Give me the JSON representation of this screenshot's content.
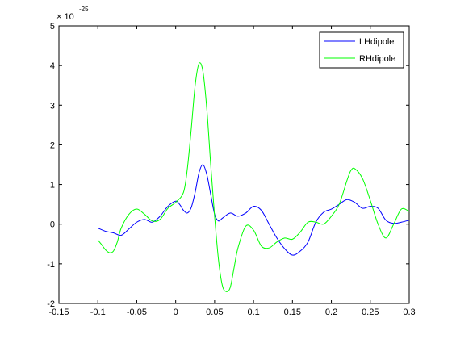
{
  "chart_data": {
    "type": "line",
    "xlim": [
      -0.15,
      0.3
    ],
    "ylim": [
      -2,
      5
    ],
    "xticks": [
      -0.15,
      -0.1,
      -0.05,
      0,
      0.05,
      0.1,
      0.15,
      0.2,
      0.25,
      0.3
    ],
    "xtick_labels": [
      "-0.15",
      "-0.1",
      "-0.05",
      "0",
      "0.05",
      "0.1",
      "0.15",
      "0.2",
      "0.25",
      "0.3"
    ],
    "yticks": [
      -2,
      -1,
      0,
      1,
      2,
      3,
      4,
      5
    ],
    "ytick_labels": [
      "-2",
      "-1",
      "0",
      "1",
      "2",
      "3",
      "4",
      "5"
    ],
    "y_exponent": {
      "base": "× 10",
      "power": "-25"
    },
    "grid": false,
    "legend_position": "top-right",
    "series": [
      {
        "name": "LHdipole",
        "color": "#0000ff",
        "x": [
          -0.1,
          -0.09,
          -0.08,
          -0.07,
          -0.06,
          -0.05,
          -0.04,
          -0.03,
          -0.02,
          -0.01,
          0,
          0.005,
          0.01,
          0.015,
          0.02,
          0.025,
          0.03,
          0.035,
          0.04,
          0.045,
          0.05,
          0.055,
          0.06,
          0.07,
          0.08,
          0.09,
          0.1,
          0.11,
          0.12,
          0.13,
          0.14,
          0.15,
          0.16,
          0.17,
          0.18,
          0.19,
          0.2,
          0.21,
          0.22,
          0.23,
          0.24,
          0.25,
          0.26,
          0.27,
          0.28,
          0.29,
          0.3
        ],
        "values": [
          -0.1,
          -0.18,
          -0.22,
          -0.28,
          -0.12,
          0.05,
          0.12,
          0.05,
          0.2,
          0.45,
          0.58,
          0.5,
          0.35,
          0.28,
          0.42,
          0.8,
          1.3,
          1.5,
          1.25,
          0.75,
          0.25,
          0.08,
          0.15,
          0.28,
          0.2,
          0.28,
          0.45,
          0.35,
          0.0,
          -0.35,
          -0.62,
          -0.78,
          -0.68,
          -0.45,
          0.05,
          0.3,
          0.38,
          0.5,
          0.62,
          0.55,
          0.4,
          0.45,
          0.4,
          0.1,
          0.02,
          0.05,
          0.1
        ]
      },
      {
        "name": "RHdipole",
        "color": "#00ff00",
        "x": [
          -0.1,
          -0.095,
          -0.09,
          -0.085,
          -0.08,
          -0.075,
          -0.07,
          -0.06,
          -0.05,
          -0.04,
          -0.03,
          -0.02,
          -0.01,
          0,
          0.01,
          0.015,
          0.02,
          0.025,
          0.03,
          0.035,
          0.04,
          0.045,
          0.05,
          0.055,
          0.06,
          0.065,
          0.07,
          0.075,
          0.08,
          0.09,
          0.1,
          0.11,
          0.12,
          0.13,
          0.14,
          0.15,
          0.16,
          0.17,
          0.18,
          0.19,
          0.2,
          0.21,
          0.22,
          0.225,
          0.23,
          0.24,
          0.25,
          0.26,
          0.27,
          0.28,
          0.29,
          0.3
        ],
        "values": [
          -0.4,
          -0.52,
          -0.65,
          -0.72,
          -0.68,
          -0.45,
          -0.1,
          0.25,
          0.38,
          0.25,
          0.08,
          0.12,
          0.4,
          0.55,
          0.8,
          1.4,
          2.4,
          3.5,
          4.05,
          3.85,
          2.9,
          1.5,
          0.2,
          -0.9,
          -1.55,
          -1.7,
          -1.6,
          -1.1,
          -0.6,
          -0.05,
          -0.15,
          -0.55,
          -0.6,
          -0.45,
          -0.35,
          -0.38,
          -0.2,
          0.05,
          0.05,
          0.0,
          0.2,
          0.5,
          1.1,
          1.35,
          1.4,
          1.15,
          0.6,
          0.0,
          -0.35,
          0.0,
          0.38,
          0.32
        ]
      }
    ]
  }
}
